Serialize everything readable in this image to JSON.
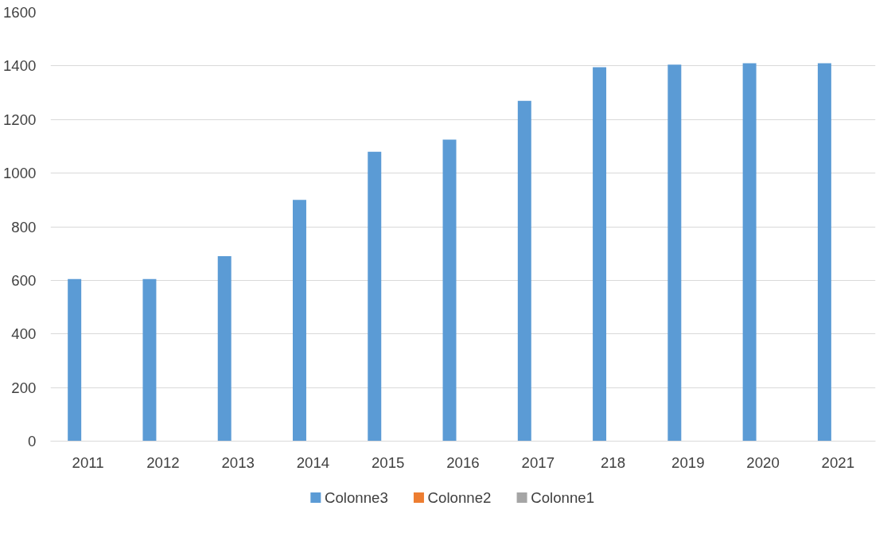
{
  "chart_data": {
    "type": "bar",
    "categories": [
      "2011",
      "2012",
      "2013",
      "2014",
      "2015",
      "2016",
      "2017",
      "218",
      "2019",
      "2020",
      "2021"
    ],
    "series": [
      {
        "name": "Colonne3",
        "color": "#5b9bd5",
        "values": [
          605,
          605,
          690,
          900,
          1080,
          1125,
          1270,
          1395,
          1405,
          1410,
          1410
        ]
      },
      {
        "name": "Colonne2",
        "color": "#ed7d31",
        "values": [
          null,
          null,
          null,
          null,
          null,
          null,
          null,
          null,
          null,
          null,
          null
        ]
      },
      {
        "name": "Colonne1",
        "color": "#a5a5a5",
        "values": [
          null,
          null,
          null,
          null,
          null,
          null,
          null,
          null,
          null,
          null,
          null
        ]
      }
    ],
    "ylim": [
      0,
      1600
    ],
    "yticks": [
      0,
      200,
      400,
      600,
      800,
      1000,
      1200,
      1400,
      1600
    ],
    "grid": "y",
    "legend": "bottom"
  }
}
